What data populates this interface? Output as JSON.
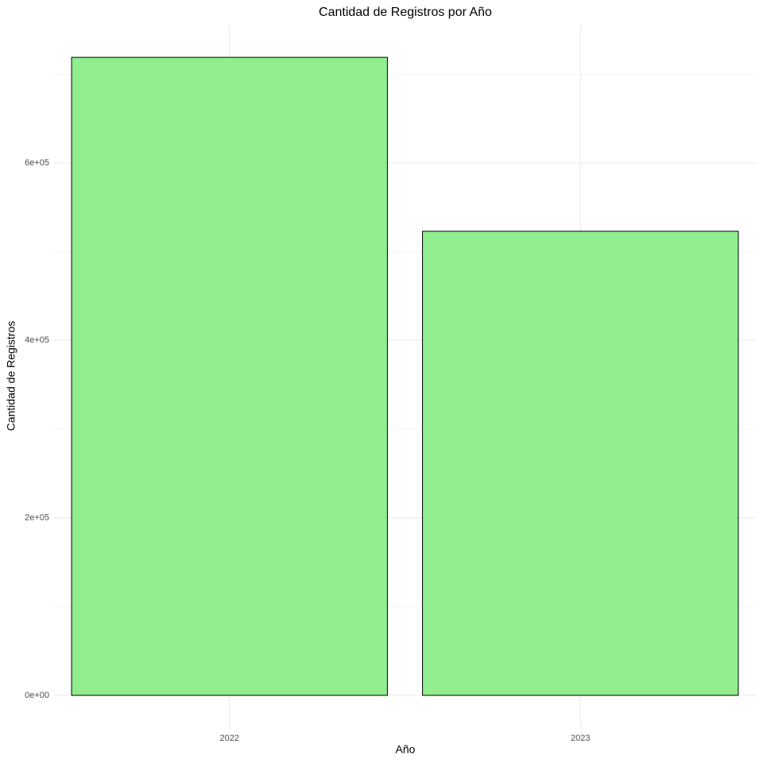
{
  "chart_data": {
    "type": "bar",
    "title": "Cantidad de Registros por Año",
    "x_label": "Año",
    "y_label": "Cantidad de Registros",
    "categories": [
      "2022",
      "2023"
    ],
    "values": [
      719000,
      523000
    ],
    "color": "#90ee90",
    "edge_color": "#000000",
    "ylim": [
      -35950,
      754950
    ],
    "yticks": [
      {
        "value": 0,
        "label": "0e+00"
      },
      {
        "value": 200000,
        "label": "2e+05"
      },
      {
        "value": 400000,
        "label": "4e+05"
      },
      {
        "value": 600000,
        "label": "6e+05"
      }
    ],
    "minor_yticks": [
      100000,
      300000,
      500000,
      700000
    ],
    "grid": true
  }
}
